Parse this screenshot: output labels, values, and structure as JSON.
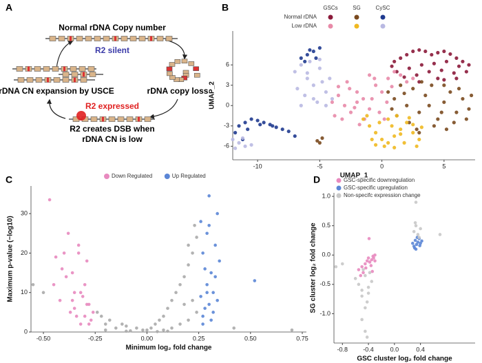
{
  "diagram": {
    "panel": "A",
    "top": "Normal rDNA Copy number",
    "silent": "R2 silent",
    "loss": "rDNA copy loss",
    "expansion": "rDNA CN expansion by USCE",
    "expressed": "R2 expressed",
    "dsb_line1": "R2 creates DSB when",
    "dsb_line2": "rDNA CN is low"
  },
  "chart_data": [
    {
      "type": "scatter",
      "panel": "B",
      "x_label": "UMAP_1",
      "y_label": "UMAP_2",
      "legend_columns": [
        "GSCs",
        "SG",
        "CySC"
      ],
      "legend_rows": [
        "Normal rDNA",
        "Low rDNA"
      ],
      "xlim": [
        -12,
        7.5
      ],
      "ylim": [
        -8,
        11
      ],
      "xticks": [
        -10,
        -5,
        0,
        5
      ],
      "yticks": [
        -6,
        -3,
        0,
        3,
        6
      ],
      "series": [
        {
          "color": "#8b1a3a",
          "x": [
            1,
            1.5,
            2,
            2.5,
            3,
            3.5,
            4,
            4.5,
            5,
            5.5,
            6,
            6.5,
            7,
            1.2,
            2.2,
            3.2,
            4.2,
            5.2,
            6.2,
            2.8,
            3.8,
            4.8,
            5.8,
            0.8,
            1.8,
            6.8,
            4.5,
            3,
            5,
            6
          ],
          "y": [
            6.5,
            7,
            7.5,
            8,
            8.2,
            8,
            7.5,
            7.8,
            8,
            7.6,
            7,
            6.5,
            6,
            5,
            5.5,
            6,
            6.2,
            6.5,
            5.8,
            4.5,
            5,
            5.2,
            4.8,
            5.8,
            4.2,
            5,
            4,
            3.5,
            3.8,
            4
          ]
        },
        {
          "color": "#e88aa8",
          "x": [
            -4,
            -3.5,
            -3,
            -2.5,
            -2,
            -1.5,
            -1,
            -0.5,
            0,
            0.5,
            -3.8,
            -3.2,
            -2.6,
            -2,
            -1.4,
            -0.8,
            -0.2,
            0.4,
            1,
            1.5,
            2,
            2.5,
            -2.8,
            -1.8,
            -0.6,
            0.2,
            -3.5,
            -1,
            0.8,
            -2.2
          ],
          "y": [
            0.5,
            1.5,
            0,
            -1,
            2,
            1,
            -0.5,
            3,
            2,
            4,
            -1.5,
            -2,
            2.5,
            0.5,
            -2,
            1,
            -1,
            0.5,
            5,
            4.5,
            3.5,
            4,
            3.5,
            -2.8,
            4,
            -2,
            2.8,
            4.5,
            2.8,
            -0.3
          ]
        },
        {
          "color": "#7a4a1f",
          "x": [
            0.5,
            1,
            1.5,
            2,
            2.5,
            3,
            3.5,
            4,
            4.5,
            5,
            5.5,
            6,
            6.5,
            7,
            1.2,
            2.2,
            3.2,
            4.2,
            5.2,
            6.2,
            7.2,
            0.8,
            1.8,
            2.8,
            3.8,
            4.8,
            5.8,
            6.8,
            3,
            5,
            -5.2,
            -4.8,
            -5
          ],
          "y": [
            2,
            1,
            3,
            0,
            2.5,
            -1,
            1.5,
            3,
            -2,
            0.5,
            2,
            -1,
            1,
            -0.5,
            -1.5,
            -2.5,
            3.5,
            -3,
            -3.5,
            2.5,
            1.5,
            -0.5,
            1.8,
            -3.5,
            0,
            -1,
            -2.5,
            -2,
            -4,
            3,
            -5.2,
            -4.8,
            -5.5
          ]
        },
        {
          "color": "#f0b921",
          "x": [
            -1.5,
            -1,
            -0.5,
            0,
            0.5,
            1,
            1.5,
            2,
            2.5,
            3,
            -1.2,
            -0.2,
            0.8,
            1.8,
            2.8,
            -0.8,
            0.2,
            1.2,
            2.2,
            0.5,
            1.5,
            -0.5,
            2.5,
            3.2,
            1
          ],
          "y": [
            -2,
            -3,
            -4,
            -5,
            -5.5,
            -4.5,
            -3.5,
            -2.5,
            -4,
            -5,
            -1.5,
            -2.5,
            -3,
            -5.5,
            -6,
            -5,
            -6,
            -1.5,
            -1.8,
            -2,
            -4.2,
            -5.8,
            -2.8,
            -3.2,
            -6.2
          ]
        },
        {
          "color": "#1f3a8f",
          "x": [
            -11.5,
            -11,
            -10.5,
            -10,
            -9.5,
            -9,
            -8.5,
            -8,
            -7.5,
            -7,
            -11.8,
            -10.8,
            -9.8,
            -6.5,
            -6,
            -5.5,
            -5,
            -6.2,
            -5.8,
            -5.3,
            -11.2,
            -8.8
          ],
          "y": [
            -3,
            -2.5,
            -2,
            -2.2,
            -2.5,
            -2.8,
            -3.2,
            -3.5,
            -3.8,
            -4.5,
            -4,
            -3.5,
            -2.8,
            7,
            7.5,
            8,
            8.5,
            6.5,
            8.2,
            7,
            -5,
            -3
          ]
        },
        {
          "color": "#b9b9e2",
          "x": [
            -7,
            -6.5,
            -6,
            -5.5,
            -5,
            -4.5,
            -4,
            -6.8,
            -6.2,
            -5.8,
            -5.2,
            -4.8,
            -4.2,
            -6.5,
            -5.5,
            -4.5,
            -6,
            -5,
            -12,
            -11.5,
            -11,
            -10.5,
            -11.8,
            -11.2
          ],
          "y": [
            5,
            6,
            4,
            3,
            5.5,
            2,
            1,
            2.5,
            1.5,
            6.5,
            0.5,
            3.5,
            4,
            0,
            1,
            0,
            4.8,
            6.8,
            -5,
            -5.5,
            -6,
            -5.8,
            -6.3,
            -4.8
          ]
        }
      ]
    },
    {
      "type": "scatter",
      "panel": "C",
      "x_label": "Minimum log₂ fold change",
      "y_label": "Maximum p-value (−log10)",
      "xlim": [
        -0.56,
        0.77
      ],
      "ylim": [
        0,
        37
      ],
      "xticks": [
        {
          "value": -0.5,
          "label": "-0.50"
        },
        -0.25,
        {
          "value": 0,
          "label": "0.00"
        },
        0.25,
        {
          "value": 0.5,
          "label": "0.50"
        },
        0.75
      ],
      "yticks": [
        0,
        10,
        20,
        30
      ],
      "series": [
        {
          "color": "#aaaaaa",
          "x": [
            0,
            0.02,
            0.04,
            0.06,
            0.08,
            0.1,
            0.12,
            0.14,
            0.16,
            0.18,
            0.2,
            0.22,
            0.24,
            0.24,
            0.22,
            0.2,
            0.18,
            0.16,
            0.12,
            0.08,
            -0.02,
            -0.05,
            -0.08,
            -0.1,
            -0.12,
            -0.15,
            -0.18,
            -0.2,
            -0.22,
            -0.24,
            -0.1,
            -0.2,
            0.1,
            0.05,
            -0.5,
            -0.55,
            0.7,
            0.42,
            0.2,
            0.23
          ],
          "y": [
            0.5,
            1,
            2,
            3,
            4,
            6,
            8,
            10,
            12,
            14,
            17,
            20,
            24,
            5,
            8,
            3,
            7,
            2,
            1,
            0.5,
            0.5,
            1,
            0.3,
            1.5,
            2,
            1,
            3,
            2,
            4,
            5,
            0.2,
            0.5,
            0.2,
            0.1,
            10,
            12,
            0.5,
            1,
            22,
            27
          ]
        },
        {
          "name": "Down Regulated",
          "color": "#e88abf",
          "x": [
            -0.47,
            -0.45,
            -0.42,
            -0.4,
            -0.38,
            -0.36,
            -0.35,
            -0.33,
            -0.32,
            -0.3,
            -0.29,
            -0.28,
            -0.27,
            -0.34,
            -0.37,
            -0.39,
            -0.31,
            -0.3,
            -0.28,
            -0.26,
            -0.36,
            -0.33,
            -0.41,
            -0.44,
            -0.29,
            -0.32,
            -0.35
          ],
          "y": [
            33.5,
            12,
            8,
            20,
            25,
            15,
            6,
            22,
            10,
            4,
            18,
            7,
            3,
            4,
            5,
            14,
            9,
            12,
            2,
            5,
            8,
            20,
            16,
            19,
            7,
            2,
            10
          ]
        },
        {
          "name": "Up Regulated",
          "color": "#5b86d6",
          "x": [
            0.26,
            0.27,
            0.28,
            0.29,
            0.3,
            0.31,
            0.32,
            0.33,
            0.34,
            0.35,
            0.27,
            0.29,
            0.31,
            0.33,
            0.26,
            0.28,
            0.3,
            0.32,
            0.34,
            0.52,
            0.3,
            0.27,
            0.29
          ],
          "y": [
            28,
            20,
            6,
            25,
            34.5,
            15,
            10,
            22,
            8,
            18,
            4,
            12,
            3,
            14,
            9,
            16,
            27,
            5,
            30,
            13,
            7,
            2,
            10
          ]
        }
      ]
    },
    {
      "type": "scatter",
      "panel": "D",
      "x_label": "GSC cluster log₂ fold change",
      "y_label": "SG cluster log₂ fold change",
      "xlim": [
        -0.93,
        1.24
      ],
      "ylim": [
        -1.5,
        1.06
      ],
      "xticks": [
        -0.8,
        -0.4,
        {
          "value": 0,
          "label": "0.0"
        },
        0.4
      ],
      "yticks": [
        {
          "value": -1,
          "label": "-1.0"
        },
        -0.5,
        {
          "value": 0,
          "label": "0.0"
        },
        0.5,
        {
          "value": 1,
          "label": "1.0"
        }
      ],
      "series": [
        {
          "name": "GSC-specific downregulation",
          "color": "#e88abf",
          "x": [
            -0.55,
            -0.5,
            -0.45,
            -0.42,
            -0.4,
            -0.38,
            -0.35,
            -0.33,
            -0.3,
            -0.48,
            -0.44,
            -0.36,
            -0.32,
            -0.52,
            -0.39,
            -0.34,
            -0.3
          ],
          "y": [
            -0.25,
            -0.2,
            -0.15,
            -0.1,
            -0.05,
            -0.12,
            -0.08,
            -0.02,
            -0.1,
            -0.3,
            -0.22,
            -0.18,
            -0.05,
            -0.35,
            0.28,
            -0.28,
            0
          ]
        },
        {
          "name": "GSC-specific upregulation",
          "color": "#5b86d6",
          "x": [
            0.28,
            0.3,
            0.32,
            0.34,
            0.36,
            0.38,
            0.4,
            0.42,
            0.31,
            0.35,
            0.39,
            0.33
          ],
          "y": [
            0.2,
            0.15,
            0.25,
            0.18,
            0.22,
            0.28,
            0.2,
            0.24,
            0.12,
            0.3,
            0.16,
            0.1
          ]
        },
        {
          "name": "Non-specifc expression change",
          "color": "#c8c8c8",
          "x": [
            -0.6,
            -0.55,
            -0.5,
            -0.45,
            -0.4,
            -0.35,
            -0.5,
            -0.42,
            -0.38,
            -0.48,
            -0.4,
            -0.45,
            0.3,
            0.33,
            0.36,
            0.4,
            0.32,
            0.38,
            0.33,
            0.7,
            -0.8,
            -0.9,
            -0.45,
            -0.42,
            -0.5
          ],
          "y": [
            -0.4,
            -0.5,
            -0.6,
            -0.35,
            -0.55,
            -0.45,
            -0.7,
            -0.8,
            -0.3,
            -0.25,
            -0.65,
            -0.9,
            0.4,
            0.5,
            0.35,
            0.45,
            0.55,
            0.3,
            0.9,
            0.35,
            -0.15,
            -0.2,
            -1.3,
            -1.4,
            -1.1
          ]
        }
      ]
    }
  ]
}
